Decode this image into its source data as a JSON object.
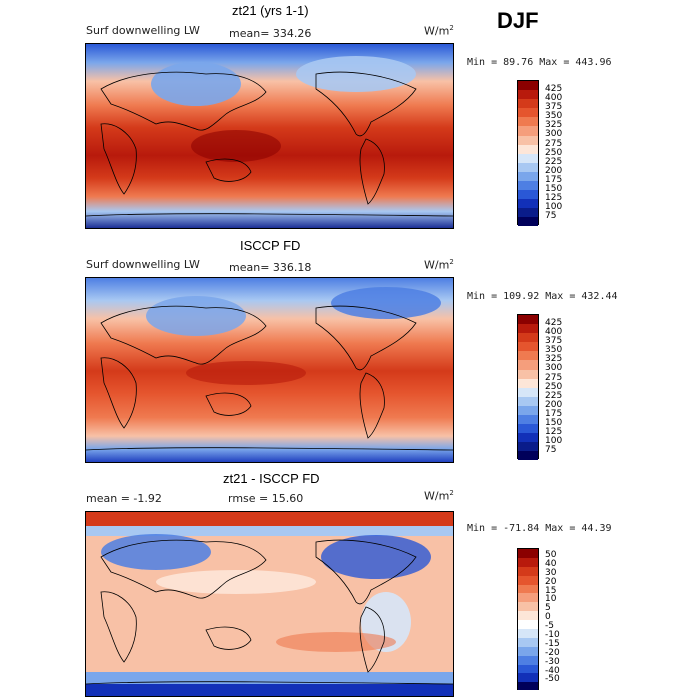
{
  "season": "DJF",
  "panels": [
    {
      "title": "zt21 (yrs 1-1)",
      "left_label": "Surf downwelling LW",
      "stat": "mean= 334.26",
      "units": "W/m",
      "units_sup": "2",
      "minmax": "Min =  89.76 Max = 443.96",
      "colorbar": {
        "labels": [
          "425",
          "400",
          "375",
          "350",
          "325",
          "300",
          "275",
          "250",
          "225",
          "200",
          "175",
          "150",
          "125",
          "100",
          "75"
        ],
        "colors": [
          "#8b0000",
          "#b81a0c",
          "#d43a1a",
          "#e5552e",
          "#ef7a50",
          "#f59e7c",
          "#f8c1a6",
          "#fde6d8",
          "#d6e6f8",
          "#a8c8f2",
          "#7aa6eb",
          "#4e7fe3",
          "#2a58d6",
          "#1230b8",
          "#0a1c8a",
          "#00005a"
        ]
      }
    },
    {
      "title": "ISCCP FD",
      "left_label": "Surf downwelling LW",
      "stat": "mean= 336.18",
      "units": "W/m",
      "units_sup": "2",
      "minmax": "Min = 109.92 Max = 432.44",
      "colorbar": {
        "labels": [
          "425",
          "400",
          "375",
          "350",
          "325",
          "300",
          "275",
          "250",
          "225",
          "200",
          "175",
          "150",
          "125",
          "100",
          "75"
        ],
        "colors": [
          "#8b0000",
          "#b81a0c",
          "#d43a1a",
          "#e5552e",
          "#ef7a50",
          "#f59e7c",
          "#f8c1a6",
          "#fde6d8",
          "#d6e6f8",
          "#a8c8f2",
          "#7aa6eb",
          "#4e7fe3",
          "#2a58d6",
          "#1230b8",
          "#0a1c8a",
          "#00005a"
        ]
      }
    },
    {
      "title": "zt21 - ISCCP FD",
      "left_label": "mean =   -1.92",
      "stat": "rmse =   15.60",
      "units": "W/m",
      "units_sup": "2",
      "minmax": "Min = -71.84 Max =   44.39",
      "colorbar": {
        "labels": [
          "50",
          "40",
          "30",
          "20",
          "15",
          "10",
          "5",
          "0",
          "-5",
          "-10",
          "-15",
          "-20",
          "-30",
          "-40",
          "-50"
        ],
        "colors": [
          "#8b0000",
          "#b81a0c",
          "#d43a1a",
          "#e5552e",
          "#ef7a50",
          "#f59e7c",
          "#f8c1a6",
          "#fde6d8",
          "#ffffff",
          "#d6e6f8",
          "#a8c8f2",
          "#7aa6eb",
          "#4e7fe3",
          "#2a58d6",
          "#1230b8",
          "#00005a"
        ]
      }
    }
  ]
}
